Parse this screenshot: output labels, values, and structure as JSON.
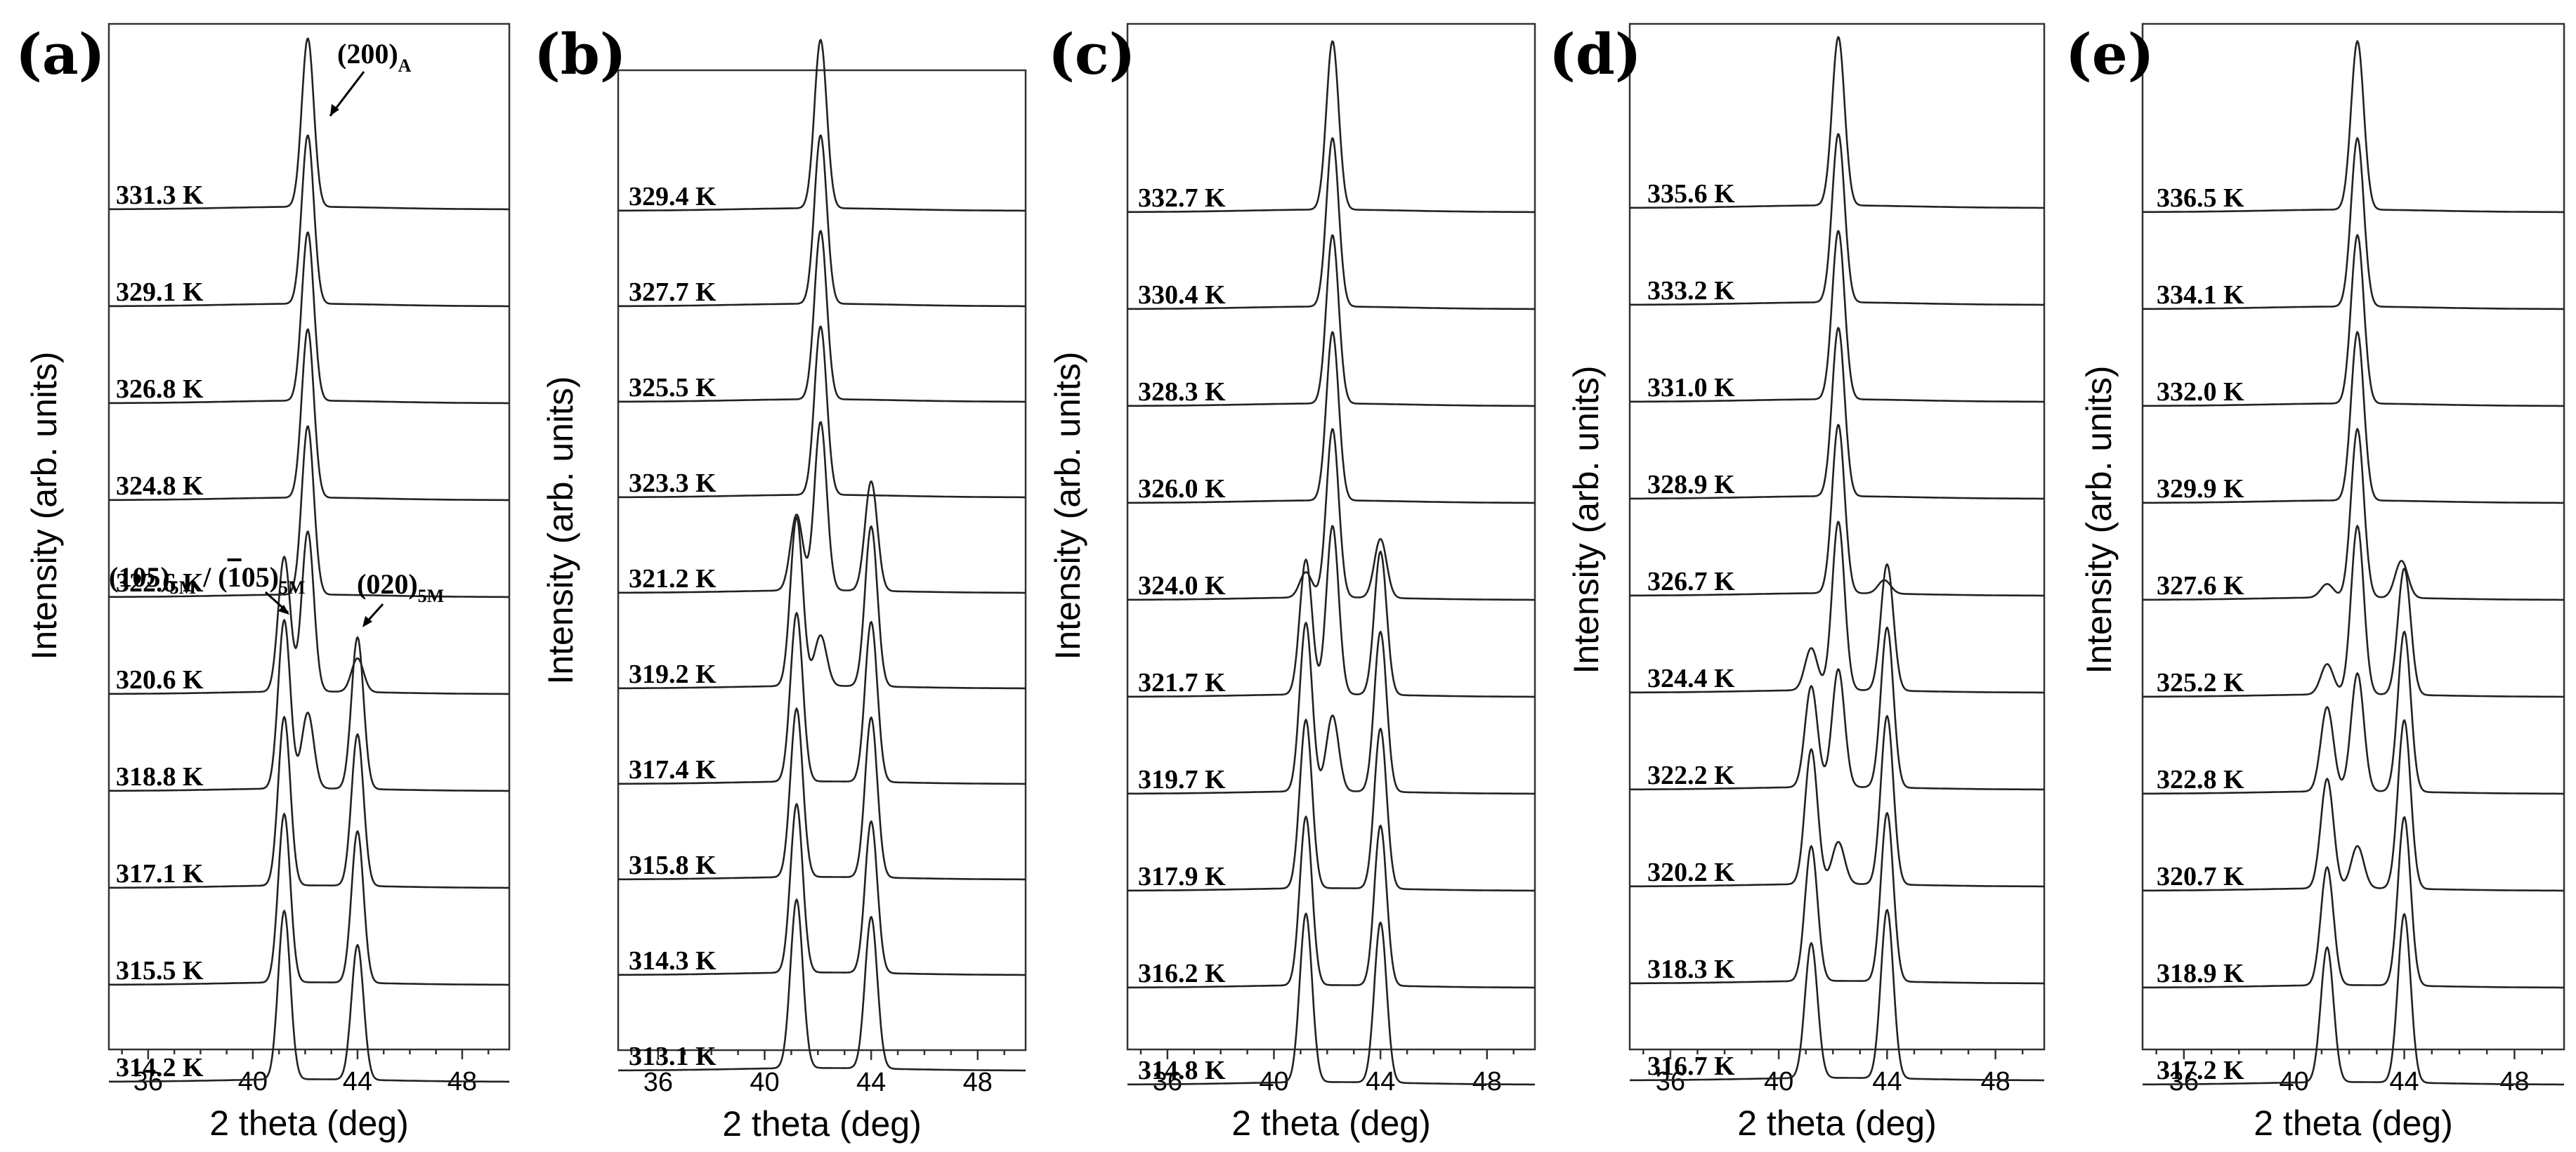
{
  "chart_data": [
    {
      "type": "line",
      "panel": "(a)",
      "xlabel": "2 theta (deg)",
      "ylabel": "Intensity (arb. units)",
      "xlim": [
        34.5,
        49.8
      ],
      "xticks": [
        36,
        40,
        44,
        48
      ],
      "annotations": [
        {
          "text": "(200)",
          "sub": "A"
        },
        {
          "text": "(105)",
          "sub": "5M",
          "text2": " / (",
          "bar": "1",
          "text3": "05)",
          "sub2": "5M"
        },
        {
          "text": "(020)",
          "sub": "5M"
        }
      ],
      "series": [
        {
          "name": "331.3 K",
          "peaks": [
            {
              "x": 42.1,
              "h": 100
            }
          ]
        },
        {
          "name": "329.1 K",
          "peaks": [
            {
              "x": 42.1,
              "h": 100
            }
          ]
        },
        {
          "name": "326.8 K",
          "peaks": [
            {
              "x": 42.1,
              "h": 100
            }
          ]
        },
        {
          "name": "324.8 K",
          "peaks": [
            {
              "x": 42.1,
              "h": 100
            }
          ]
        },
        {
          "name": "322.6 K",
          "peaks": [
            {
              "x": 42.1,
              "h": 100
            }
          ]
        },
        {
          "name": "320.6 K",
          "peaks": [
            {
              "x": 41.2,
              "h": 80
            },
            {
              "x": 42.1,
              "h": 95
            },
            {
              "x": 44.0,
              "h": 20
            }
          ]
        },
        {
          "name": "318.8 K",
          "peaks": [
            {
              "x": 41.2,
              "h": 100
            },
            {
              "x": 42.1,
              "h": 45
            },
            {
              "x": 44.0,
              "h": 90
            }
          ]
        },
        {
          "name": "317.1 K",
          "peaks": [
            {
              "x": 41.2,
              "h": 100
            },
            {
              "x": 44.0,
              "h": 90
            }
          ]
        },
        {
          "name": "315.5 K",
          "peaks": [
            {
              "x": 41.2,
              "h": 100
            },
            {
              "x": 44.0,
              "h": 90
            }
          ]
        },
        {
          "name": "314.2 K",
          "peaks": [
            {
              "x": 41.2,
              "h": 100
            },
            {
              "x": 44.0,
              "h": 80
            }
          ]
        }
      ]
    },
    {
      "type": "line",
      "panel": "(b)",
      "xlabel": "2 theta (deg)",
      "ylabel": "Intensity (arb. units)",
      "xlim": [
        34.5,
        49.8
      ],
      "xticks": [
        36,
        40,
        44,
        48
      ],
      "series": [
        {
          "name": "329.4 K",
          "peaks": [
            {
              "x": 42.1,
              "h": 100
            }
          ]
        },
        {
          "name": "327.7 K",
          "peaks": [
            {
              "x": 42.1,
              "h": 100
            }
          ]
        },
        {
          "name": "325.5 K",
          "peaks": [
            {
              "x": 42.1,
              "h": 100
            }
          ]
        },
        {
          "name": "323.3 K",
          "peaks": [
            {
              "x": 42.1,
              "h": 100
            }
          ]
        },
        {
          "name": "321.2 K",
          "peaks": [
            {
              "x": 41.2,
              "h": 45
            },
            {
              "x": 42.1,
              "h": 100
            },
            {
              "x": 44.0,
              "h": 65
            }
          ]
        },
        {
          "name": "319.2 K",
          "peaks": [
            {
              "x": 41.2,
              "h": 100
            },
            {
              "x": 42.1,
              "h": 30
            },
            {
              "x": 44.0,
              "h": 95
            }
          ]
        },
        {
          "name": "317.4 K",
          "peaks": [
            {
              "x": 41.2,
              "h": 100
            },
            {
              "x": 44.0,
              "h": 95
            }
          ]
        },
        {
          "name": "315.8 K",
          "peaks": [
            {
              "x": 41.2,
              "h": 100
            },
            {
              "x": 44.0,
              "h": 95
            }
          ]
        },
        {
          "name": "314.3 K",
          "peaks": [
            {
              "x": 41.2,
              "h": 100
            },
            {
              "x": 44.0,
              "h": 90
            }
          ]
        },
        {
          "name": "313.1 K",
          "peaks": [
            {
              "x": 41.2,
              "h": 100
            },
            {
              "x": 44.0,
              "h": 90
            }
          ]
        }
      ]
    },
    {
      "type": "line",
      "panel": "(c)",
      "xlabel": "2 theta (deg)",
      "ylabel": "Intensity (arb. units)",
      "xlim": [
        34.5,
        49.8
      ],
      "xticks": [
        36,
        40,
        44,
        48
      ],
      "series": [
        {
          "name": "332.7 K",
          "peaks": [
            {
              "x": 42.2,
              "h": 100
            }
          ]
        },
        {
          "name": "330.4 K",
          "peaks": [
            {
              "x": 42.2,
              "h": 100
            }
          ]
        },
        {
          "name": "328.3 K",
          "peaks": [
            {
              "x": 42.2,
              "h": 100
            }
          ]
        },
        {
          "name": "326.0 K",
          "peaks": [
            {
              "x": 42.2,
              "h": 100
            }
          ]
        },
        {
          "name": "324.0 K",
          "peaks": [
            {
              "x": 41.2,
              "h": 15
            },
            {
              "x": 42.2,
              "h": 100
            },
            {
              "x": 44.0,
              "h": 35
            }
          ]
        },
        {
          "name": "321.7 K",
          "peaks": [
            {
              "x": 41.2,
              "h": 80
            },
            {
              "x": 42.2,
              "h": 100
            },
            {
              "x": 44.0,
              "h": 85
            }
          ]
        },
        {
          "name": "319.7 K",
          "peaks": [
            {
              "x": 41.2,
              "h": 100
            },
            {
              "x": 42.2,
              "h": 45
            },
            {
              "x": 44.0,
              "h": 95
            }
          ]
        },
        {
          "name": "317.9 K",
          "peaks": [
            {
              "x": 41.2,
              "h": 100
            },
            {
              "x": 44.0,
              "h": 95
            }
          ]
        },
        {
          "name": "316.2 K",
          "peaks": [
            {
              "x": 41.2,
              "h": 100
            },
            {
              "x": 44.0,
              "h": 95
            }
          ]
        },
        {
          "name": "314.8 K",
          "peaks": [
            {
              "x": 41.2,
              "h": 100
            },
            {
              "x": 44.0,
              "h": 95
            }
          ]
        }
      ]
    },
    {
      "type": "line",
      "panel": "(d)",
      "xlabel": "2 theta (deg)",
      "ylabel": "Intensity (arb. units)",
      "xlim": [
        34.5,
        49.8
      ],
      "xticks": [
        36,
        40,
        44,
        48
      ],
      "series": [
        {
          "name": "335.6 K",
          "peaks": [
            {
              "x": 42.2,
              "h": 100
            }
          ]
        },
        {
          "name": "333.2 K",
          "peaks": [
            {
              "x": 42.2,
              "h": 100
            }
          ]
        },
        {
          "name": "331.0 K",
          "peaks": [
            {
              "x": 42.2,
              "h": 100
            }
          ]
        },
        {
          "name": "328.9 K",
          "peaks": [
            {
              "x": 42.2,
              "h": 100
            }
          ]
        },
        {
          "name": "326.7 K",
          "peaks": [
            {
              "x": 42.2,
              "h": 100
            },
            {
              "x": 43.9,
              "h": 8
            }
          ]
        },
        {
          "name": "324.4 K",
          "peaks": [
            {
              "x": 41.2,
              "h": 25
            },
            {
              "x": 42.2,
              "h": 100
            },
            {
              "x": 44.0,
              "h": 75
            }
          ]
        },
        {
          "name": "322.2 K",
          "peaks": [
            {
              "x": 41.2,
              "h": 60
            },
            {
              "x": 42.2,
              "h": 70
            },
            {
              "x": 44.0,
              "h": 95
            }
          ]
        },
        {
          "name": "320.2 K",
          "peaks": [
            {
              "x": 41.2,
              "h": 80
            },
            {
              "x": 42.2,
              "h": 25
            },
            {
              "x": 44.0,
              "h": 100
            }
          ]
        },
        {
          "name": "318.3 K",
          "peaks": [
            {
              "x": 41.2,
              "h": 80
            },
            {
              "x": 44.0,
              "h": 100
            }
          ]
        },
        {
          "name": "316.7 K",
          "peaks": [
            {
              "x": 41.2,
              "h": 80
            },
            {
              "x": 44.0,
              "h": 100
            }
          ]
        }
      ]
    },
    {
      "type": "line",
      "panel": "(e)",
      "xlabel": "2 theta (deg)",
      "ylabel": "Intensity (arb. units)",
      "xlim": [
        34.5,
        49.8
      ],
      "xticks": [
        36,
        40,
        44,
        48
      ],
      "series": [
        {
          "name": "336.5 K",
          "peaks": [
            {
              "x": 42.3,
              "h": 100
            }
          ]
        },
        {
          "name": "334.1 K",
          "peaks": [
            {
              "x": 42.3,
              "h": 100
            }
          ]
        },
        {
          "name": "332.0 K",
          "peaks": [
            {
              "x": 42.3,
              "h": 100
            }
          ]
        },
        {
          "name": "329.9 K",
          "peaks": [
            {
              "x": 42.3,
              "h": 100
            }
          ]
        },
        {
          "name": "327.6 K",
          "peaks": [
            {
              "x": 41.2,
              "h": 8
            },
            {
              "x": 42.3,
              "h": 100
            },
            {
              "x": 43.9,
              "h": 22
            }
          ]
        },
        {
          "name": "325.2 K",
          "peaks": [
            {
              "x": 41.2,
              "h": 18
            },
            {
              "x": 42.3,
              "h": 100
            },
            {
              "x": 44.0,
              "h": 75
            }
          ]
        },
        {
          "name": "322.8 K",
          "peaks": [
            {
              "x": 41.2,
              "h": 50
            },
            {
              "x": 42.3,
              "h": 70
            },
            {
              "x": 44.0,
              "h": 95
            }
          ]
        },
        {
          "name": "320.7 K",
          "peaks": [
            {
              "x": 41.2,
              "h": 65
            },
            {
              "x": 42.3,
              "h": 25
            },
            {
              "x": 44.0,
              "h": 100
            }
          ]
        },
        {
          "name": "318.9 K",
          "peaks": [
            {
              "x": 41.2,
              "h": 70
            },
            {
              "x": 44.0,
              "h": 100
            }
          ]
        },
        {
          "name": "317.2 K",
          "peaks": [
            {
              "x": 41.2,
              "h": 80
            },
            {
              "x": 44.0,
              "h": 100
            }
          ]
        }
      ]
    }
  ]
}
